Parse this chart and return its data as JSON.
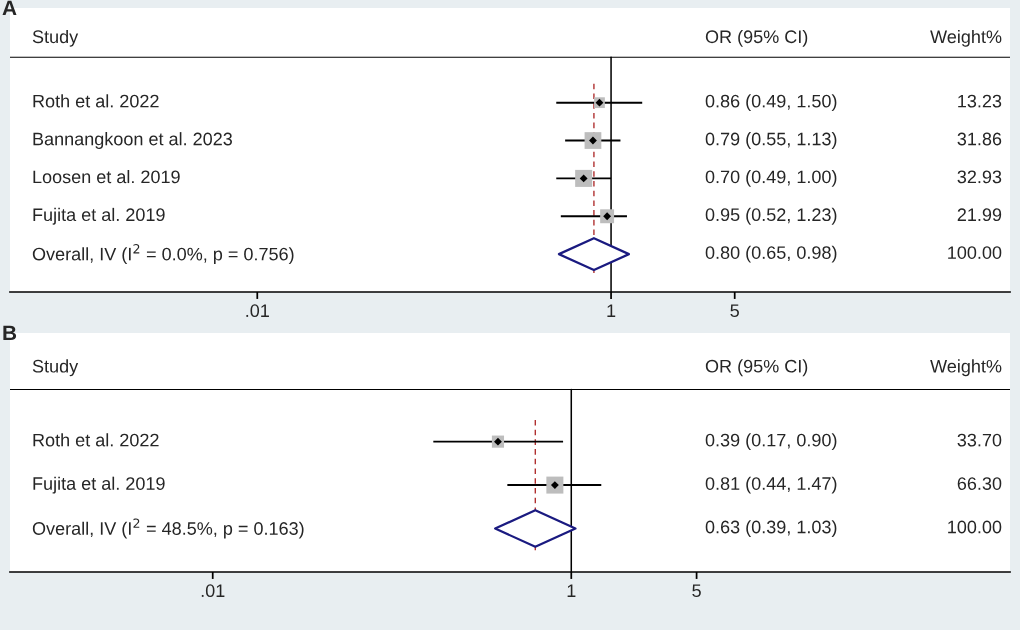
{
  "chart_data": [
    {
      "type": "scatter",
      "title": "A",
      "log": "x",
      "orientation": "horizontal",
      "categories": [
        "Roth et al. 2022",
        "Bannangkoon et al. 2023",
        "Loosen et al. 2019",
        "Fujita et al. 2019",
        "Overall, IV (I$^{2}$ = 0.0%, p = 0.756)"
      ],
      "annotations": [
        "Study",
        "OR (95% CI)",
        "Weight%",
        "0.86 (0.49, 1.50)",
        "13.23",
        "0.79 (0.55, 1.13)",
        "31.86",
        "0.70 (0.49, 1.00)",
        "32.93",
        "0.95 (0.52, 1.23)",
        "21.99",
        "0.80 (0.65, 0.98)",
        "100.00"
      ],
      "xlim": [
        0.0004,
        180
      ],
      "xticks": [
        {
          "value": 0.01,
          "label": ".01"
        },
        1,
        5
      ],
      "series": [
        {
          "marker": "square",
          "color": "#bdbdbd",
          "values": [
            0.86,
            0.79,
            0.7,
            0.95,
            null
          ],
          "sizes": [
            0.4,
            0.97,
            1,
            0.67,
            null
          ]
        },
        {
          "marker": "diamond",
          "color": "#000000",
          "values": [
            0.86,
            0.79,
            0.7,
            0.95,
            null
          ],
          "errors": [
            [
              0.49,
              1.5
            ],
            [
              0.55,
              1.13
            ],
            [
              0.49,
              1.0
            ],
            [
              0.52,
              1.23
            ],
            null
          ]
        }
      ],
      "ref_lines": [
        {
          "axis": "x",
          "value": 1,
          "color": "#000000",
          "line_style": "solid"
        },
        {
          "axis": "x",
          "value": 0.8,
          "color": "#b03030",
          "line_style": "dashed"
        }
      ],
      "grid": false
    },
    {
      "type": "scatter",
      "title": "B",
      "log": "x",
      "orientation": "horizontal",
      "categories": [
        "Roth et al. 2022",
        "Fujita et al. 2019",
        "Overall, IV (I$^{2}$ = 48.5%, p = 0.163)"
      ],
      "annotations": [
        "Study",
        "OR (95% CI)",
        "Weight%",
        "0.39 (0.17, 0.90)",
        "33.70",
        "0.81 (0.44, 1.47)",
        "66.30",
        "0.63 (0.39, 1.03)",
        "100.00"
      ],
      "xlim": [
        0.00074,
        280
      ],
      "xticks": [
        {
          "value": 0.01,
          "label": ".01"
        },
        1,
        5
      ],
      "series": [
        {
          "marker": "square",
          "color": "#bdbdbd",
          "values": [
            0.39,
            0.81,
            null
          ],
          "sizes": [
            0.51,
            1,
            null
          ]
        },
        {
          "marker": "diamond",
          "color": "#000000",
          "values": [
            0.39,
            0.81,
            null
          ],
          "errors": [
            [
              0.17,
              0.9
            ],
            [
              0.44,
              1.47
            ],
            null
          ]
        }
      ],
      "ref_lines": [
        {
          "axis": "x",
          "value": 1,
          "color": "#000000",
          "line_style": "solid"
        },
        {
          "axis": "x",
          "value": 0.63,
          "color": "#b03030",
          "line_style": "dashed"
        }
      ],
      "grid": false
    }
  ]
}
